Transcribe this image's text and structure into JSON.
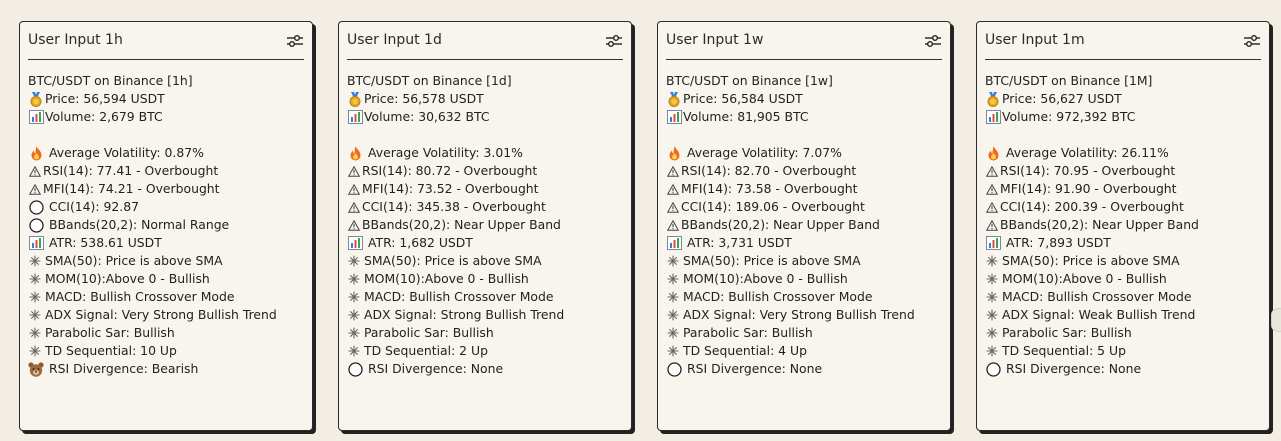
{
  "cards": [
    {
      "title": "User Input 1h",
      "lines": [
        {
          "icon": "none",
          "text": "BTC/USDT on Binance [1h]"
        },
        {
          "icon": "medal",
          "text": "Price: 56,594 USDT"
        },
        {
          "icon": "chart",
          "text": "Volume: 2,679 BTC"
        },
        {
          "icon": "gap",
          "text": ""
        },
        {
          "icon": "fire",
          "text": "Average Volatility: 0.87%"
        },
        {
          "icon": "warning",
          "text": "RSI(14): 77.41 - Overbought"
        },
        {
          "icon": "warning",
          "text": "MFI(14): 74.21 - Overbought"
        },
        {
          "icon": "circle",
          "text": "CCI(14): 92.87"
        },
        {
          "icon": "circle",
          "text": "BBands(20,2): Normal Range"
        },
        {
          "icon": "chart",
          "text": "ATR: 538.61 USDT"
        },
        {
          "icon": "sparkle",
          "text": "SMA(50): Price is above SMA"
        },
        {
          "icon": "sparkle",
          "text": "MOM(10):Above 0 - Bullish"
        },
        {
          "icon": "sparkle",
          "text": "MACD: Bullish Crossover Mode"
        },
        {
          "icon": "sparkle",
          "text": "ADX Signal: Very Strong Bullish Trend"
        },
        {
          "icon": "sparkle",
          "text": "Parabolic Sar: Bullish"
        },
        {
          "icon": "sparkle",
          "text": "TD Sequential: 10 Up"
        },
        {
          "icon": "bear",
          "text": "RSI Divergence: Bearish"
        }
      ]
    },
    {
      "title": "User Input 1d",
      "lines": [
        {
          "icon": "none",
          "text": "BTC/USDT on Binance [1d]"
        },
        {
          "icon": "medal",
          "text": "Price: 56,578 USDT"
        },
        {
          "icon": "chart",
          "text": "Volume: 30,632 BTC"
        },
        {
          "icon": "gap",
          "text": ""
        },
        {
          "icon": "fire",
          "text": "Average Volatility: 3.01%"
        },
        {
          "icon": "warning",
          "text": "RSI(14): 80.72 - Overbought"
        },
        {
          "icon": "warning",
          "text": "MFI(14): 73.52 - Overbought"
        },
        {
          "icon": "warning",
          "text": "CCI(14): 345.38 - Overbought"
        },
        {
          "icon": "warning",
          "text": "BBands(20,2): Near Upper Band"
        },
        {
          "icon": "chart",
          "text": "ATR: 1,682 USDT"
        },
        {
          "icon": "sparkle",
          "text": "SMA(50): Price is above SMA"
        },
        {
          "icon": "sparkle",
          "text": "MOM(10):Above 0 - Bullish"
        },
        {
          "icon": "sparkle",
          "text": "MACD: Bullish Crossover Mode"
        },
        {
          "icon": "sparkle",
          "text": "ADX Signal: Strong Bullish Trend"
        },
        {
          "icon": "sparkle",
          "text": "Parabolic Sar: Bullish"
        },
        {
          "icon": "sparkle",
          "text": "TD Sequential: 2 Up"
        },
        {
          "icon": "circle",
          "text": "RSI Divergence: None"
        }
      ]
    },
    {
      "title": "User Input 1w",
      "lines": [
        {
          "icon": "none",
          "text": "BTC/USDT on Binance [1w]"
        },
        {
          "icon": "medal",
          "text": "Price: 56,584 USDT"
        },
        {
          "icon": "chart",
          "text": "Volume: 81,905 BTC"
        },
        {
          "icon": "gap",
          "text": ""
        },
        {
          "icon": "fire",
          "text": "Average Volatility: 7.07%"
        },
        {
          "icon": "warning",
          "text": "RSI(14): 82.70 - Overbought"
        },
        {
          "icon": "warning",
          "text": "MFI(14): 73.58 - Overbought"
        },
        {
          "icon": "warning",
          "text": "CCI(14): 189.06 - Overbought"
        },
        {
          "icon": "warning",
          "text": "BBands(20,2): Near Upper Band"
        },
        {
          "icon": "chart",
          "text": "ATR: 3,731 USDT"
        },
        {
          "icon": "sparkle",
          "text": "SMA(50): Price is above SMA"
        },
        {
          "icon": "sparkle",
          "text": "MOM(10):Above 0 - Bullish"
        },
        {
          "icon": "sparkle",
          "text": "MACD: Bullish Crossover Mode"
        },
        {
          "icon": "sparkle",
          "text": "ADX Signal: Very Strong Bullish Trend"
        },
        {
          "icon": "sparkle",
          "text": "Parabolic Sar: Bullish"
        },
        {
          "icon": "sparkle",
          "text": "TD Sequential: 4 Up"
        },
        {
          "icon": "circle",
          "text": "RSI Divergence: None"
        }
      ]
    },
    {
      "title": "User Input 1m",
      "lines": [
        {
          "icon": "none",
          "text": "BTC/USDT on Binance [1M]"
        },
        {
          "icon": "medal",
          "text": "Price: 56,627 USDT"
        },
        {
          "icon": "chart",
          "text": "Volume: 972,392 BTC"
        },
        {
          "icon": "gap",
          "text": ""
        },
        {
          "icon": "fire",
          "text": "Average Volatility: 26.11%"
        },
        {
          "icon": "warning",
          "text": "RSI(14): 70.95 - Overbought"
        },
        {
          "icon": "warning",
          "text": "MFI(14): 91.90 - Overbought"
        },
        {
          "icon": "warning",
          "text": "CCI(14): 200.39 - Overbought"
        },
        {
          "icon": "warning",
          "text": "BBands(20,2): Near Upper Band"
        },
        {
          "icon": "chart",
          "text": "ATR: 7,893 USDT"
        },
        {
          "icon": "sparkle",
          "text": "SMA(50): Price is above SMA"
        },
        {
          "icon": "sparkle",
          "text": "MOM(10):Above 0 - Bullish"
        },
        {
          "icon": "sparkle",
          "text": "MACD: Bullish Crossover Mode"
        },
        {
          "icon": "sparkle",
          "text": "ADX Signal: Weak Bullish Trend"
        },
        {
          "icon": "sparkle",
          "text": "Parabolic Sar: Bullish"
        },
        {
          "icon": "sparkle",
          "text": "TD Sequential: 5 Up"
        },
        {
          "icon": "circle",
          "text": "RSI Divergence: None"
        }
      ]
    }
  ]
}
